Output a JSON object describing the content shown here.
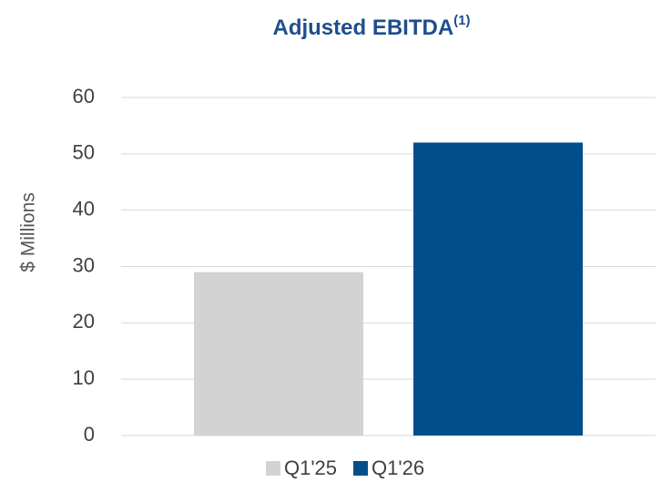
{
  "chart_data": {
    "type": "bar",
    "title": "Adjusted EBITDA",
    "title_superscript": "(1)",
    "y_label": "$ Millions",
    "categories": [
      null
    ],
    "series": [
      {
        "name": "Q1'25",
        "color": "#d3d3d3",
        "values": [
          29
        ]
      },
      {
        "name": "Q1'26",
        "color": "#004f8b",
        "values": [
          52
        ]
      }
    ],
    "ylim": [
      0,
      60
    ],
    "yticks": [
      0,
      10,
      20,
      30,
      40,
      50,
      60
    ],
    "grid": true,
    "legend": "bottom"
  }
}
